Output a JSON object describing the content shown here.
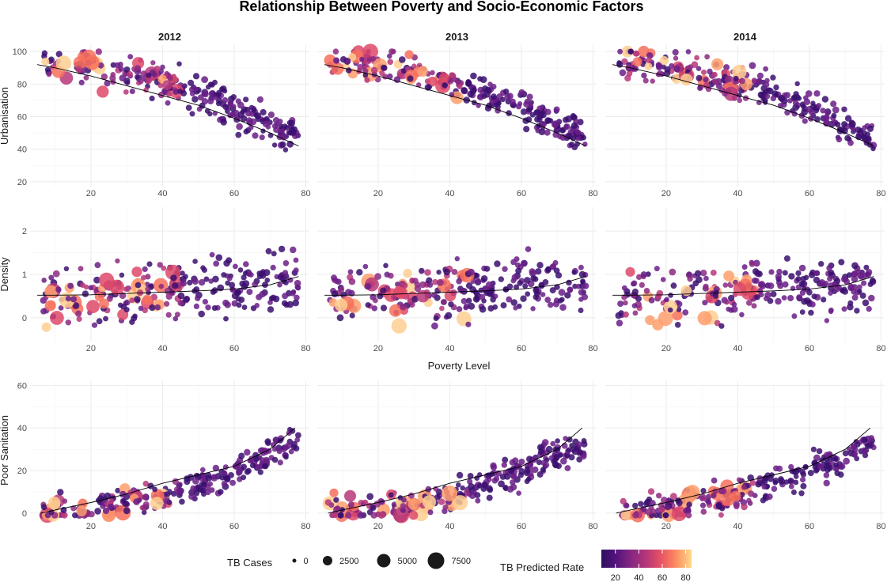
{
  "chart_data": {
    "type": "scatter",
    "title": "Relationship Between Poverty and Socio-Economic Factors",
    "facet_columns": [
      "2012",
      "2013",
      "2014"
    ],
    "rows": [
      {
        "ylabel": "Urbanisation",
        "yticks": [
          20,
          40,
          60,
          80,
          100
        ],
        "ylim": [
          17,
          104
        ]
      },
      {
        "ylabel": "Density",
        "yticks": [
          0,
          1,
          2
        ],
        "ylim": [
          -0.55,
          2.55
        ]
      },
      {
        "ylabel": "Poor Sanitation",
        "yticks": [
          0,
          20,
          40,
          60
        ],
        "ylim": [
          -3,
          62
        ]
      }
    ],
    "xlabel": "Poverty Level",
    "xticks": [
      20,
      40,
      60,
      80
    ],
    "xlim": [
      3,
      81
    ],
    "grid": true,
    "smooth_lines": [
      {
        "row": "Urbanisation",
        "x": [
          5,
          10,
          20,
          30,
          40,
          50,
          60,
          70,
          78
        ],
        "y": [
          92,
          90,
          85,
          79,
          73,
          67,
          59,
          50,
          42
        ]
      },
      {
        "row": "Density",
        "x": [
          5,
          10,
          20,
          30,
          40,
          50,
          60,
          70,
          78
        ],
        "y": [
          0.52,
          0.52,
          0.53,
          0.56,
          0.59,
          0.62,
          0.66,
          0.76,
          0.95
        ]
      },
      {
        "row": "Poor Sanitation",
        "x": [
          6,
          10,
          20,
          30,
          40,
          50,
          60,
          70,
          77
        ],
        "y": [
          0,
          1.5,
          5,
          9,
          14,
          18,
          22,
          30,
          40
        ]
      }
    ],
    "legend": {
      "size": {
        "title": "TB Cases",
        "breaks": [
          0,
          2500,
          5000,
          7500
        ]
      },
      "color": {
        "title": "TB Predicted Rate",
        "breaks": [
          20,
          40,
          60,
          80
        ],
        "range": [
          8,
          85
        ]
      },
      "position": "bottom"
    },
    "colors": {
      "palette": [
        "#3b0f70",
        "#6a1e87",
        "#8c2981",
        "#b73779",
        "#de4968",
        "#f7705c",
        "#fe9f6d",
        "#fecf92"
      ],
      "smooth_line": "#000000",
      "grid": "#ebebeb"
    }
  }
}
